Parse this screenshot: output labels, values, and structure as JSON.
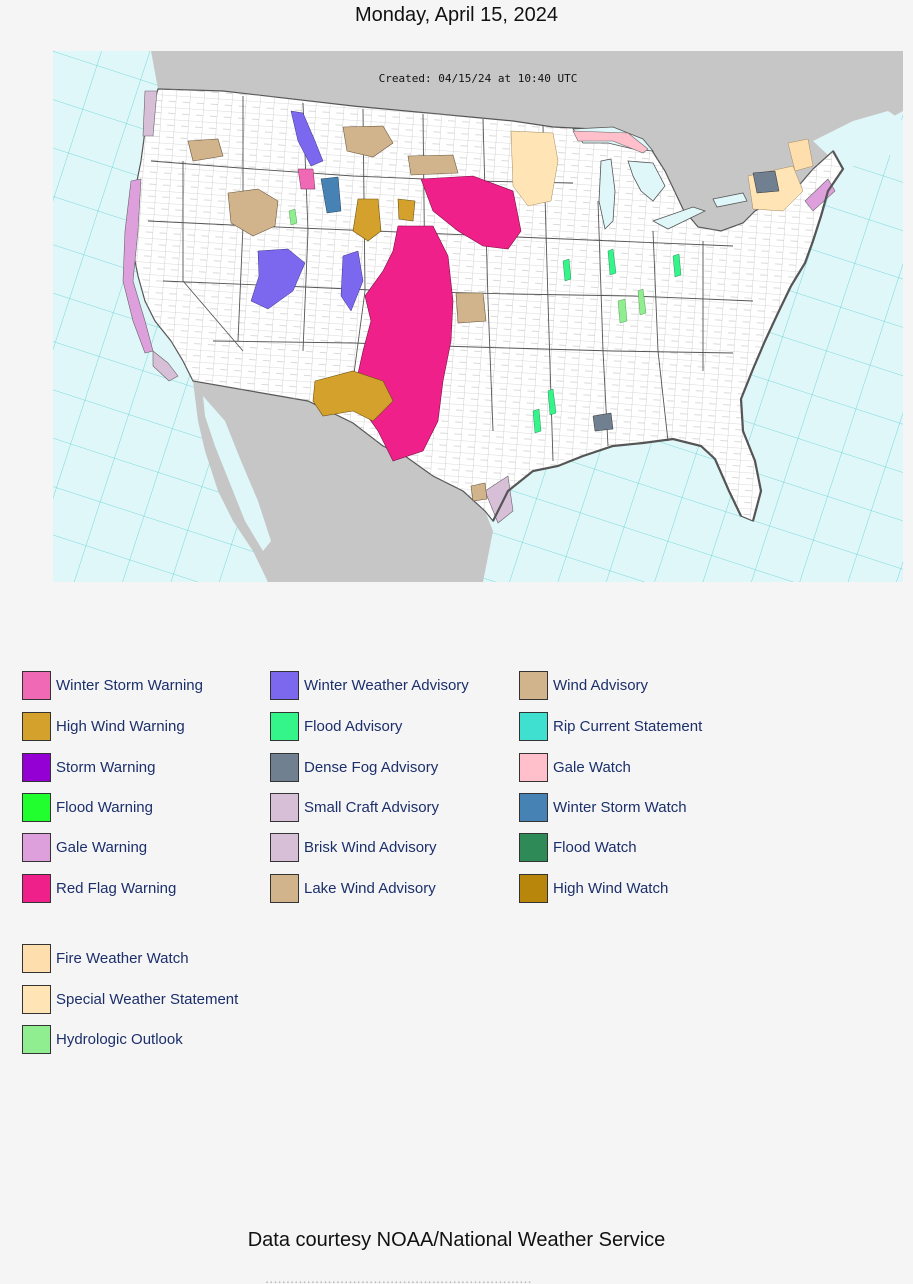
{
  "page": {
    "date": "Monday, April 15, 2024",
    "credit": "Data courtesy NOAA/National Weather Service",
    "credit_cut": "................................................................"
  },
  "map": {
    "created_stamp": "Created: 04/15/24 at 10:40 UTC",
    "colors": {
      "water": "#dff7f8",
      "land_foreign": "#c6c6c6",
      "land_us": "#ffffff",
      "zone_lines": "#5ccfd4",
      "county_lines": "#9a9a9a",
      "state_lines": "#555555"
    }
  },
  "legend": {
    "columns": [
      [
        {
          "label": "Winter Storm Warning",
          "color": "#f069b4"
        },
        {
          "label": "High Wind Warning",
          "color": "#d4a22c"
        },
        {
          "label": "Storm Warning",
          "color": "#9400d3"
        },
        {
          "label": "Flood Warning",
          "color": "#21ff2e"
        },
        {
          "label": "Gale Warning",
          "color": "#dda0dd"
        },
        {
          "label": "Red Flag Warning",
          "color": "#f0208a"
        }
      ],
      [
        {
          "label": "Winter Weather Advisory",
          "color": "#7b68ee"
        },
        {
          "label": "Flood Advisory",
          "color": "#34f58a"
        },
        {
          "label": "Dense Fog Advisory",
          "color": "#708090"
        },
        {
          "label": "Small Craft Advisory",
          "color": "#d8bfd8"
        },
        {
          "label": "Brisk Wind Advisory",
          "color": "#d8bfd8"
        },
        {
          "label": "Lake Wind Advisory",
          "color": "#d2b48c"
        }
      ],
      [
        {
          "label": "Wind Advisory",
          "color": "#d2b48c"
        },
        {
          "label": "Rip Current Statement",
          "color": "#40e0d0"
        },
        {
          "label": "Gale Watch",
          "color": "#ffc0cb"
        },
        {
          "label": "Winter Storm Watch",
          "color": "#4682b4"
        },
        {
          "label": "Flood Watch",
          "color": "#2e8b57"
        },
        {
          "label": "High Wind Watch",
          "color": "#b8860b"
        }
      ]
    ],
    "extra": [
      {
        "label": "Fire Weather Watch",
        "color": "#ffdead"
      },
      {
        "label": "Special Weather Statement",
        "color": "#ffe4b5"
      },
      {
        "label": "Hydrologic Outlook",
        "color": "#90ee90"
      }
    ]
  }
}
